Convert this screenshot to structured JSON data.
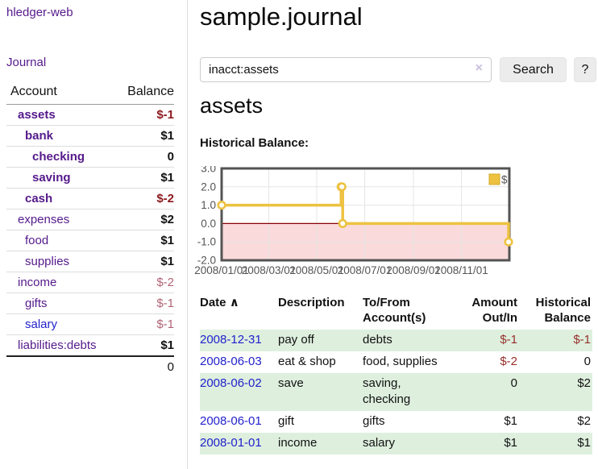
{
  "sidebar": {
    "brand": "hledger-web",
    "nav": {
      "journal": "Journal"
    },
    "accounts_table": {
      "account_header": "Account",
      "balance_header": "Balance",
      "rows": [
        {
          "name": "assets",
          "balance": "$-1"
        },
        {
          "name": "bank",
          "balance": "$1"
        },
        {
          "name": "checking",
          "balance": "0"
        },
        {
          "name": "saving",
          "balance": "$1"
        },
        {
          "name": "cash",
          "balance": "$-2"
        },
        {
          "name": "expenses",
          "balance": "$2"
        },
        {
          "name": "food",
          "balance": "$1"
        },
        {
          "name": "supplies",
          "balance": "$1"
        },
        {
          "name": "income",
          "balance": "$-2"
        },
        {
          "name": "gifts",
          "balance": "$-1"
        },
        {
          "name": "salary",
          "balance": "$-1"
        },
        {
          "name": "liabilities:debts",
          "balance": "$1"
        }
      ],
      "total": "0"
    }
  },
  "main": {
    "title": "sample.journal",
    "search": {
      "value": "inacct:assets",
      "clear_icon": "×",
      "search_button": "Search",
      "help_button": "?"
    },
    "account_heading": "assets",
    "chart_title": "Historical Balance:",
    "register": {
      "headers": {
        "date": "Date",
        "sort_icon": "∧",
        "description": "Description",
        "tofrom": "To/From Account(s)",
        "amount": "Amount Out/In",
        "balance": "Historical Balance"
      },
      "rows": [
        {
          "date": "2008-12-31",
          "description": "pay off",
          "accounts": "debts",
          "amount": "$-1",
          "balance": "$-1"
        },
        {
          "date": "2008-06-03",
          "description": "eat & shop",
          "accounts": "food, supplies",
          "amount": "$-2",
          "balance": "0"
        },
        {
          "date": "2008-06-02",
          "description": "save",
          "accounts": "saving, checking",
          "amount": "0",
          "balance": "$2"
        },
        {
          "date": "2008-06-01",
          "description": "gift",
          "accounts": "gifts",
          "amount": "$1",
          "balance": "$2"
        },
        {
          "date": "2008-01-01",
          "description": "income",
          "accounts": "salary",
          "amount": "$1",
          "balance": "$1"
        }
      ]
    }
  },
  "chart_data": {
    "type": "line",
    "title": "Historical Balance",
    "step": true,
    "x_range": [
      "2008-01-01",
      "2009-01-01"
    ],
    "ylim": [
      -2,
      3
    ],
    "y_ticks": [
      3,
      2,
      1,
      0,
      -1,
      -2
    ],
    "x_ticks": [
      {
        "t": "2008-01-01",
        "label": "2008/01/01"
      },
      {
        "t": "2008-03-01",
        "label": "2008/03/01"
      },
      {
        "t": "2008-05-01",
        "label": "2008/05/01"
      },
      {
        "t": "2008-07-01",
        "label": "2008/07/01"
      },
      {
        "t": "2008-09-01",
        "label": "2008/09/01"
      },
      {
        "t": "2008-11-01",
        "label": "2008/11/01"
      }
    ],
    "series": [
      {
        "name": "$",
        "color": "#edc240",
        "points": [
          {
            "date": "2008-01-01",
            "value": 1
          },
          {
            "date": "2008-06-01",
            "value": 2
          },
          {
            "date": "2008-06-02",
            "value": 2
          },
          {
            "date": "2008-06-03",
            "value": 0
          },
          {
            "date": "2008-12-31",
            "value": -1
          }
        ]
      }
    ],
    "grid": true,
    "legend_position": "top-right",
    "axis_color": "#545454",
    "grid_color": "#e6e6e6",
    "zero_line_color": "#8b0000",
    "negative_region_color": "#fadada"
  },
  "colors": {
    "link_purple": "#551a8b",
    "link_blue": "#2222cc",
    "negative_strong": "#8c191e",
    "negative_muted": "#b26375",
    "row_stripe_green": "#deefde",
    "series_yellow": "#edc240"
  }
}
